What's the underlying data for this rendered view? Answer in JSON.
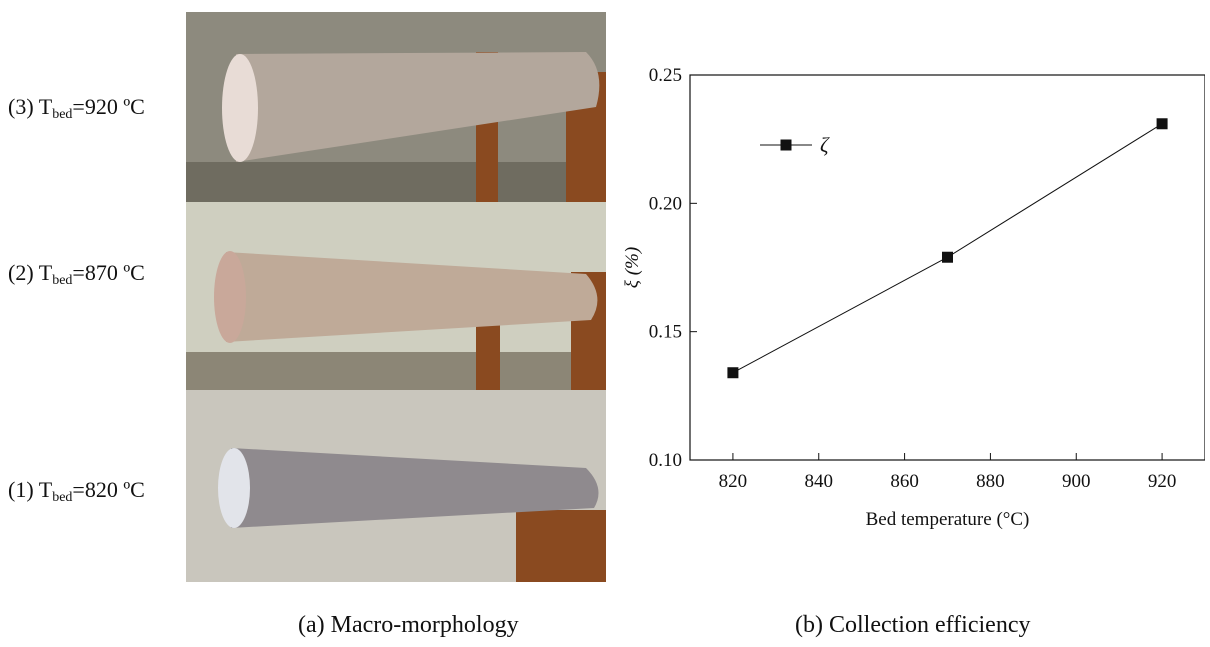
{
  "panel_a": {
    "caption": "(a) Macro-morphology",
    "rows": [
      {
        "prefix": "(3) T",
        "sub": "bed",
        "suffix": "=920 ºC"
      },
      {
        "prefix": "(2) T",
        "sub": "bed",
        "suffix": "=870 ºC"
      },
      {
        "prefix": "(1) T",
        "sub": "bed",
        "suffix": "=820 ºC"
      }
    ],
    "photo_colors": {
      "rod_920": "#b3a79c",
      "rod_870": "#bfaa98",
      "rod_820": "#8f8a8e",
      "wall_920": "#8d8a7e",
      "wall_870": "#cfcfc0",
      "wall_820": "#c9c6bd",
      "bracket": "#8a4a20"
    }
  },
  "panel_b": {
    "caption": "(b) Collection efficiency"
  },
  "chart_data": {
    "type": "line",
    "xlabel": "Bed temperature (°C)",
    "ylabel": "ξ (%)",
    "xlim": [
      810,
      930
    ],
    "ylim": [
      0.1,
      0.25
    ],
    "xticks": [
      820,
      840,
      860,
      880,
      900,
      920
    ],
    "yticks": [
      0.1,
      0.15,
      0.2,
      0.25
    ],
    "ytick_labels": [
      "0.10",
      "0.15",
      "0.20",
      "0.25"
    ],
    "legend_position": "top-left",
    "series": [
      {
        "name": "ζ",
        "marker": "square",
        "color": "#111111",
        "x": [
          820,
          870,
          920
        ],
        "y": [
          0.134,
          0.179,
          0.231
        ]
      }
    ]
  }
}
